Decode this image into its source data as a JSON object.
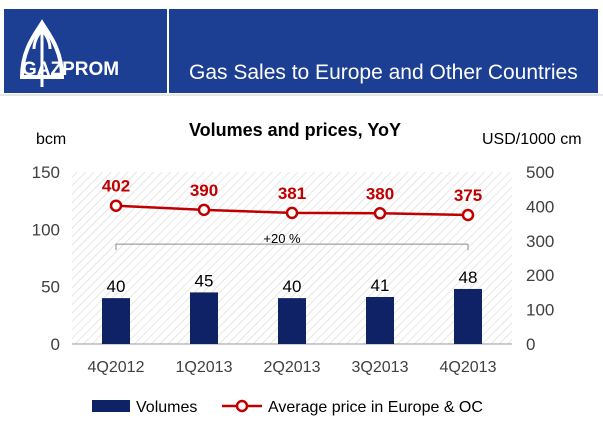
{
  "header": {
    "logo_text": "GAZPROM",
    "title": "Gas Sales to Europe and Other Countries",
    "brand_color": "#1c3f94"
  },
  "chart_data": {
    "type": "bar",
    "title": "Volumes and prices, YoY",
    "categories": [
      "4Q2012",
      "1Q2013",
      "2Q2013",
      "3Q2013",
      "4Q2013"
    ],
    "left_axis": {
      "label": "bcm",
      "ticks": [
        "0",
        "50",
        "100",
        "150"
      ],
      "range": [
        0,
        150
      ]
    },
    "right_axis": {
      "label": "USD/1000 cm",
      "ticks": [
        "0",
        "100",
        "200",
        "300",
        "400",
        "500"
      ],
      "range": [
        0,
        500
      ]
    },
    "series": [
      {
        "name": "Volumes",
        "type": "bar",
        "axis": "left",
        "color": "#0f2266",
        "values": [
          40,
          45,
          40,
          41,
          48
        ]
      },
      {
        "name": "Average price in Europe & OC",
        "type": "line",
        "axis": "right",
        "color": "#c00000",
        "values": [
          402,
          390,
          381,
          380,
          375
        ]
      }
    ],
    "annotation": {
      "text": "+20 %",
      "from": "4Q2012",
      "to": "4Q2013"
    },
    "legend_position": "bottom",
    "grid": "hatched plot area"
  }
}
